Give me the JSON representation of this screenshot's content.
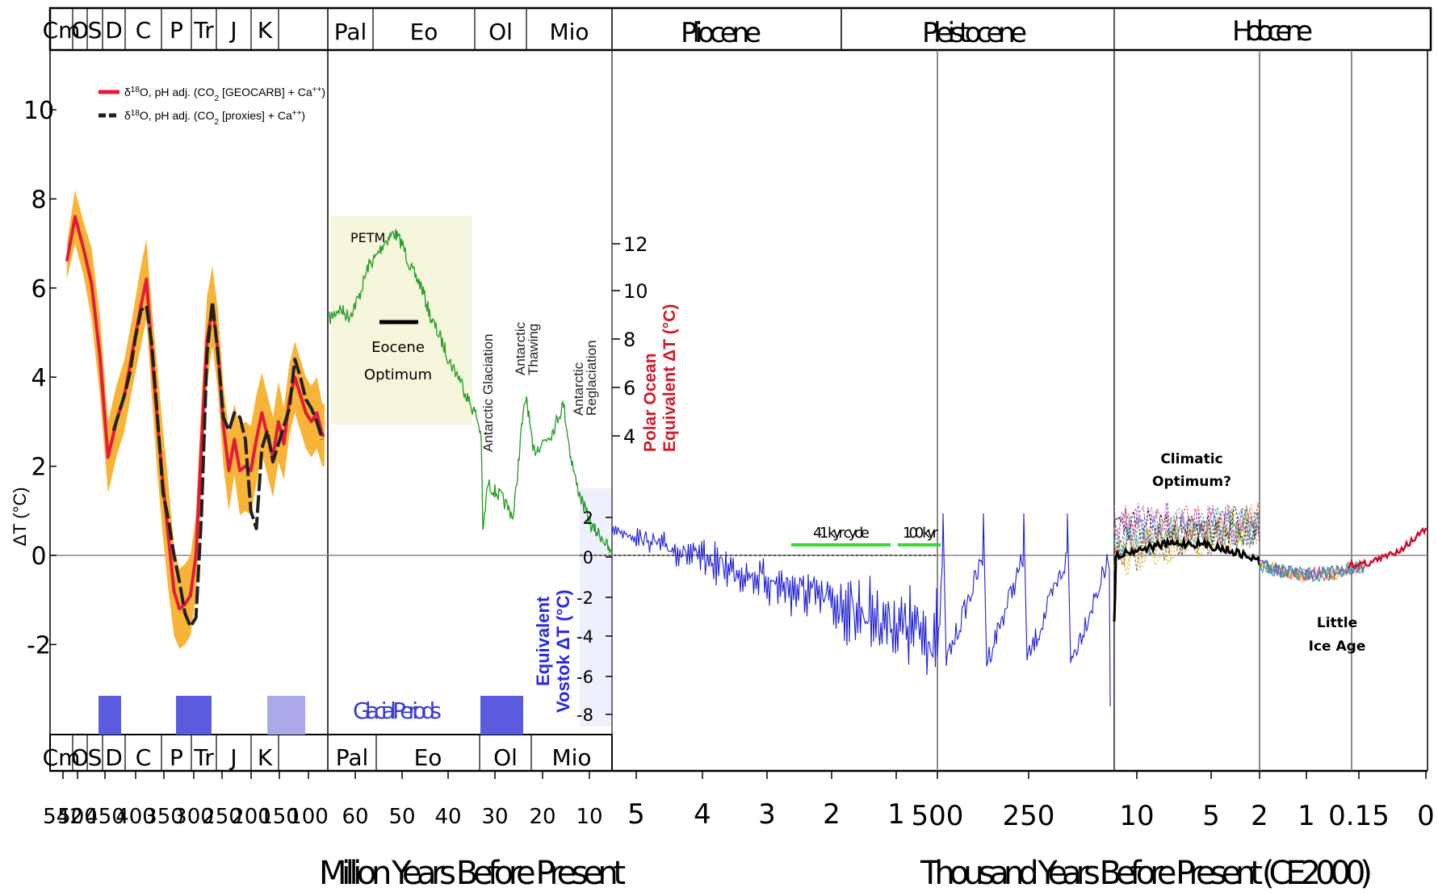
{
  "chart_data": {
    "type": "line",
    "title": "",
    "ylabel": "ΔT (°C)",
    "ylim": [
      -3.5,
      10
    ],
    "y_ticks": [
      "10",
      "8",
      "6",
      "4",
      "2",
      "0",
      "-2"
    ],
    "top_periods_paleozoic": [
      "Cm",
      "O",
      "S",
      "D",
      "C",
      "P",
      "Tr",
      "J",
      "K"
    ],
    "top_periods_cenozoic": [
      "Pal",
      "Eo",
      "Ol",
      "Mio"
    ],
    "top_epochs": [
      "Pliocene",
      "Pleistocene",
      "Holocene"
    ],
    "bottom_periods_paleozoic": [
      "Cm",
      "O",
      "S",
      "D",
      "C",
      "P",
      "Tr",
      "J",
      "K"
    ],
    "bottom_periods_cenozoic": [
      "Pal",
      "Eo",
      "Ol",
      "Mio"
    ],
    "x_ticks_myr": [
      "542",
      "500",
      "450",
      "400",
      "350",
      "300",
      "250",
      "200",
      "150",
      "100",
      "60",
      "50",
      "40",
      "30",
      "20",
      "10",
      "5",
      "4",
      "3",
      "2",
      "1"
    ],
    "x_ticks_kyr": [
      "500",
      "250",
      "10",
      "5",
      "2",
      "1",
      "0.15",
      "0"
    ],
    "xlabel_left": "Million Years Before Present",
    "xlabel_right": "Thousand Years Before Present (CE2000)",
    "legend": {
      "placement": "top-left",
      "entries": [
        {
          "label": "δ18O, pH adj. (CO2 [GEOCARB] + Ca++)",
          "color": "#e31b3b",
          "style": "solid"
        },
        {
          "label": "δ18O, pH adj. (CO2 [proxies] + Ca++)",
          "color": "#231f20",
          "style": "dashed"
        }
      ]
    },
    "series": [
      {
        "name": "δ18O, pH adj. (CO2 [GEOCARB] + Ca++)",
        "color": "#e31b3b",
        "x": [
          535,
          520,
          505,
          490,
          475,
          460,
          445,
          430,
          415,
          400,
          390,
          380,
          370,
          360,
          350,
          340,
          330,
          320,
          310,
          300,
          290,
          280,
          270,
          260,
          250,
          240,
          230,
          220,
          210,
          200,
          190,
          180,
          170,
          160,
          150,
          140,
          130,
          120,
          110,
          100,
          90,
          80,
          70,
          66
        ],
        "y": [
          6.6,
          7.6,
          6.9,
          6.1,
          4.5,
          2.2,
          3.0,
          3.6,
          4.6,
          5.6,
          6.2,
          4.5,
          3.0,
          1.6,
          0.4,
          -0.8,
          -1.2,
          -1.1,
          -0.9,
          0.0,
          2.5,
          4.8,
          5.6,
          4.6,
          2.9,
          1.9,
          2.6,
          1.9,
          2.0,
          1.9,
          2.6,
          3.2,
          2.7,
          2.2,
          3.0,
          2.5,
          3.5,
          4.0,
          3.6,
          3.2,
          3.0,
          3.2,
          2.7,
          2.7
        ]
      },
      {
        "name": "δ18O, pH adj. (CO2 [proxies] + Ca++)",
        "color": "#231f20",
        "x": [
          450,
          440,
          430,
          420,
          410,
          400,
          390,
          380,
          370,
          360,
          350,
          340,
          330,
          320,
          310,
          300,
          290,
          280,
          270,
          260,
          250,
          240,
          230,
          220,
          210,
          200,
          190,
          180,
          170,
          160,
          150,
          140,
          130,
          120,
          110,
          100,
          90,
          80,
          70
        ],
        "y": [
          2.8,
          3.2,
          3.6,
          4.1,
          4.9,
          5.5,
          5.6,
          4.7,
          3.1,
          1.4,
          0.8,
          0.0,
          -0.6,
          -1.3,
          -1.6,
          -1.4,
          0.9,
          4.5,
          5.7,
          4.5,
          3.1,
          2.8,
          3.2,
          3.1,
          2.6,
          1.0,
          0.6,
          2.4,
          2.8,
          2.1,
          2.5,
          2.9,
          3.3,
          4.4,
          4.0,
          3.5,
          3.3,
          3.0,
          2.6
        ]
      }
    ],
    "right_axis_polar": {
      "label": "Polar Ocean Equivalent ΔT (°C)",
      "ticks": [
        "12",
        "10",
        "8",
        "6",
        "4"
      ]
    },
    "right_axis_vostok": {
      "label": "Equivalent Vostok ΔT (°C)",
      "ticks": [
        "2",
        "0",
        "-2",
        "-4",
        "-6",
        "-8"
      ]
    },
    "annotations": {
      "petm": "PETM",
      "eocene_optimum_1": "Eocene",
      "eocene_optimum_2": "Optimum",
      "antarctic_glaciation": "Antarctic Glaciation",
      "antarctic_thawing_1": "Antarctic",
      "antarctic_thawing_2": "Thawing",
      "antarctic_reglaciation_1": "Antarctic",
      "antarctic_reglaciation_2": "Reglaciation",
      "glacial_periods": "Glacial Periods",
      "cycle_41": "41 kyr cycle",
      "cycle_100": "100 kyr",
      "climatic_optimum_1": "Climatic",
      "climatic_optimum_2": "Optimum?",
      "little_ice_age_1": "Little",
      "little_ice_age_2": "Ice Age"
    },
    "colors": {
      "uncertainty_band": "#f7b02c",
      "cenozoic_line": "#2ca02c",
      "vostok_line": "#1f1fd6",
      "glacial_bar": "#5b5be0",
      "glacial_bar_light": "#a9a9e8",
      "cycle_bar": "#33dd33",
      "petm_box": "#f5f6dc"
    },
    "grid": false
  }
}
